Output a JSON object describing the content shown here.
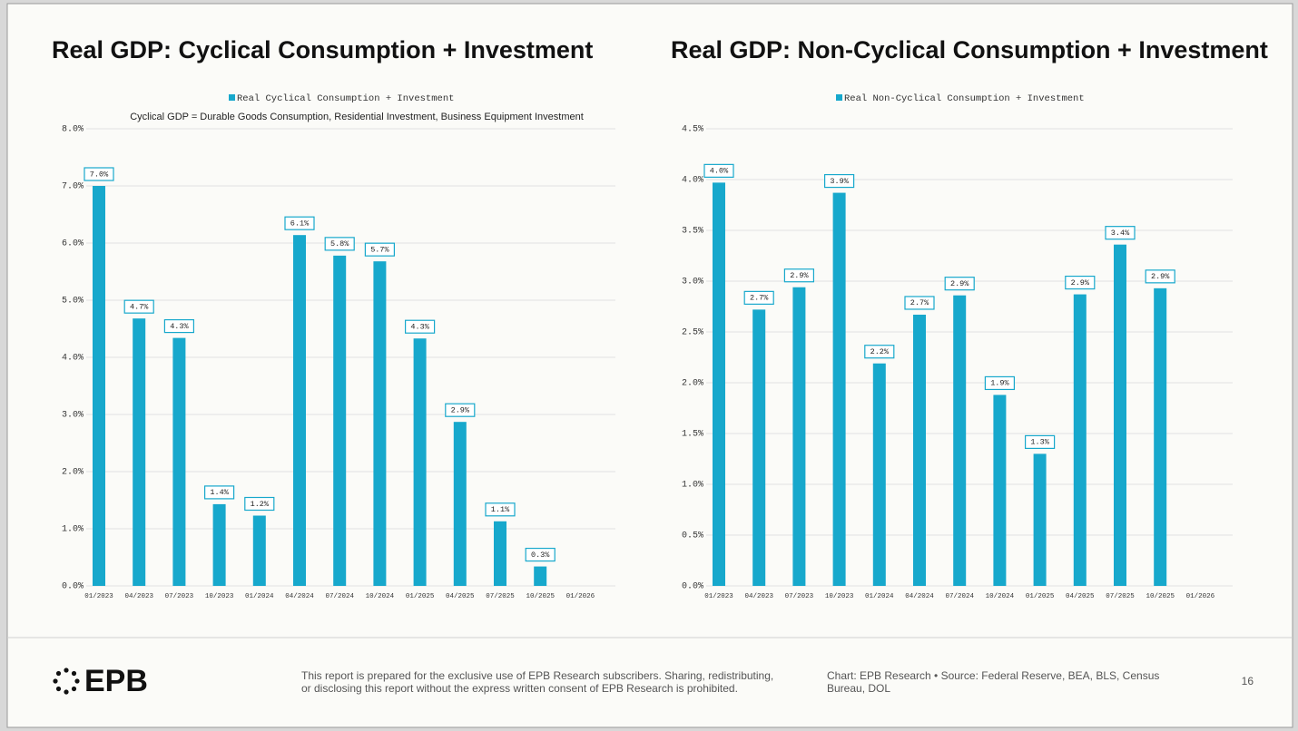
{
  "chart_data": [
    {
      "type": "bar",
      "title": "Real GDP: Cyclical Consumption + Investment",
      "subtitle": "Cyclical GDP = Durable Goods Consumption, Residential Investment, Business Equipment Investment",
      "categories": [
        "01/2023",
        "04/2023",
        "07/2023",
        "10/2023",
        "01/2024",
        "04/2024",
        "07/2024",
        "10/2024",
        "01/2025",
        "04/2025",
        "07/2025",
        "10/2025",
        "01/2026"
      ],
      "series": [
        {
          "name": "Real Cyclical Consumption + Investment",
          "color": "#17a8cc",
          "values": [
            7.0,
            4.68,
            4.34,
            1.43,
            1.23,
            6.14,
            5.78,
            5.68,
            4.33,
            2.87,
            1.13,
            0.34,
            null
          ],
          "value_labels": [
            "7.0%",
            "4.7%",
            "4.3%",
            "1.4%",
            "1.2%",
            "6.1%",
            "5.8%",
            "5.7%",
            "4.3%",
            "2.9%",
            "1.1%",
            "0.3%",
            null
          ]
        }
      ],
      "ylim": [
        0,
        8
      ],
      "yticks": [
        {
          "value": 0,
          "label": "0.0%"
        },
        {
          "value": 1,
          "label": "1.0%"
        },
        {
          "value": 2,
          "label": "2.0%"
        },
        {
          "value": 3,
          "label": "3.0%"
        },
        {
          "value": 4,
          "label": "4.0%"
        },
        {
          "value": 5,
          "label": "5.0%"
        },
        {
          "value": 6,
          "label": "6.0%"
        },
        {
          "value": 7,
          "label": "7.0%"
        },
        {
          "value": 8,
          "label": "8.0%"
        }
      ],
      "grid": true,
      "legend": "top"
    },
    {
      "type": "bar",
      "title": "Real GDP: Non-Cyclical Consumption + Investment",
      "categories": [
        "01/2023",
        "04/2023",
        "07/2023",
        "10/2023",
        "01/2024",
        "04/2024",
        "07/2024",
        "10/2024",
        "01/2025",
        "04/2025",
        "07/2025",
        "10/2025",
        "01/2026"
      ],
      "series": [
        {
          "name": "Real Non-Cyclical Consumption + Investment",
          "color": "#17a8cc",
          "values": [
            3.97,
            2.72,
            2.94,
            3.87,
            2.19,
            2.67,
            2.86,
            1.88,
            1.3,
            2.87,
            3.36,
            2.93,
            null
          ],
          "value_labels": [
            "4.0%",
            "2.7%",
            "2.9%",
            "3.9%",
            "2.2%",
            "2.7%",
            "2.9%",
            "1.9%",
            "1.3%",
            "2.9%",
            "3.4%",
            "2.9%",
            null
          ]
        }
      ],
      "ylim": [
        0,
        4.5
      ],
      "yticks": [
        {
          "value": 0,
          "label": "0.0%"
        },
        {
          "value": 0.5,
          "label": "0.5%"
        },
        {
          "value": 1,
          "label": "1.0%"
        },
        {
          "value": 1.5,
          "label": "1.5%"
        },
        {
          "value": 2,
          "label": "2.0%"
        },
        {
          "value": 2.5,
          "label": "2.5%"
        },
        {
          "value": 3,
          "label": "3.0%"
        },
        {
          "value": 3.5,
          "label": "3.5%"
        },
        {
          "value": 4,
          "label": "4.0%"
        },
        {
          "value": 4.5,
          "label": "4.5%"
        }
      ],
      "grid": true,
      "legend": "top"
    }
  ],
  "footer": {
    "logo": "EPB",
    "disclaimer": "This report is prepared for the exclusive use of EPB Research subscribers. Sharing, redistributing, or disclosing this report without the express written consent of EPB Research is prohibited.",
    "source": "Chart: EPB Research  •  Source: Federal Reserve, BEA, BLS, Census Bureau, DOL",
    "page": "16"
  }
}
